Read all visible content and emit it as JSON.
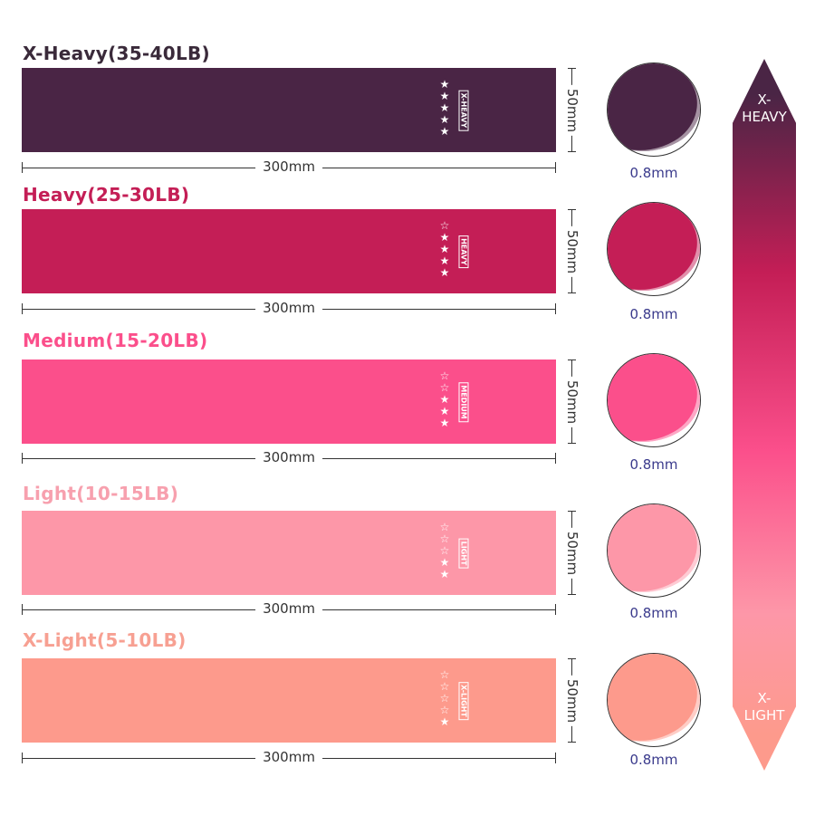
{
  "bands": [
    {
      "title": "X-Heavy(35-40LB)",
      "tag": "X-HEAVY",
      "stars": 5,
      "color": "#4a2545",
      "title_color": "#3a2a3a",
      "length": "300mm",
      "width": "50mm",
      "thickness": "0.8mm"
    },
    {
      "title": "Heavy(25-30LB)",
      "tag": "HEAVY",
      "stars": 4,
      "color": "#c41e56",
      "title_color": "#c41e56",
      "length": "300mm",
      "width": "50mm",
      "thickness": "0.8mm"
    },
    {
      "title": "Medium(15-20LB)",
      "tag": "MEDIUM",
      "stars": 3,
      "color": "#fb4f8b",
      "title_color": "#fb4f8b",
      "length": "300mm",
      "width": "50mm",
      "thickness": "0.8mm"
    },
    {
      "title": "Light(10-15LB)",
      "tag": "LIGHT",
      "stars": 2,
      "color": "#fd97a8",
      "title_color": "#f7a0ae",
      "length": "300mm",
      "width": "50mm",
      "thickness": "0.8mm"
    },
    {
      "title": "X-Light(5-10LB)",
      "tag": "X-LIGHT",
      "stars": 1,
      "color": "#fd9a8c",
      "title_color": "#f7a092",
      "length": "300mm",
      "width": "50mm",
      "thickness": "0.8mm"
    }
  ],
  "scale": {
    "top_label": "X-\nHEAVY",
    "bottom_label": "X-\nLIGHT"
  }
}
